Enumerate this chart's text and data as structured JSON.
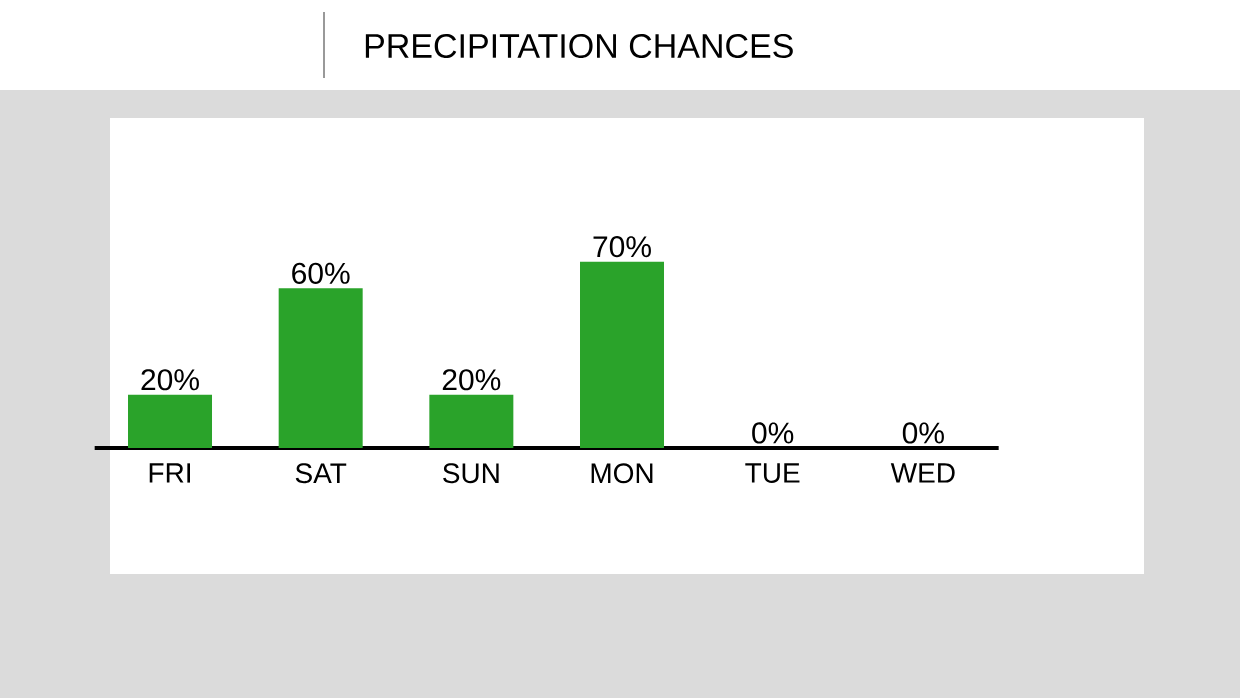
{
  "chart_data": {
    "type": "bar",
    "title": "PRECIPITATION CHANCES",
    "categories": [
      "FRI",
      "SAT",
      "SUN",
      "MON",
      "TUE",
      "WED"
    ],
    "values": [
      20,
      60,
      20,
      70,
      0,
      0
    ],
    "value_labels": [
      "20%",
      "60%",
      "20%",
      "70%",
      "0%",
      "0%"
    ],
    "color": "#2aa32a"
  }
}
